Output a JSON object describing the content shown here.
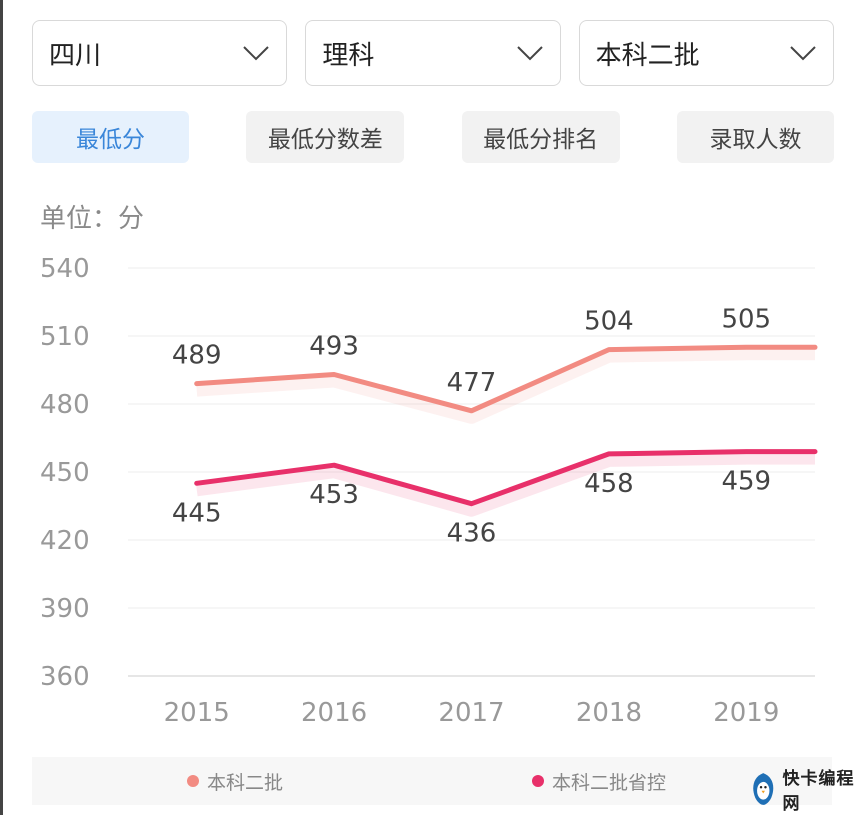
{
  "filters": {
    "province": "四川",
    "subject": "理科",
    "batch": "本科二批"
  },
  "tabs": [
    {
      "label": "最低分",
      "active": true
    },
    {
      "label": "最低分数差",
      "active": false
    },
    {
      "label": "最低分排名",
      "active": false
    },
    {
      "label": "录取人数",
      "active": false
    }
  ],
  "unit_label": "单位：分",
  "colors": {
    "series1": "#f28b82",
    "series2": "#e8306a",
    "active_tab_text": "#3a86d9",
    "active_tab_bg": "#e6f1fd"
  },
  "chart_data": {
    "type": "line",
    "x": [
      "2015",
      "2016",
      "2017",
      "2018",
      "2019"
    ],
    "ylim": [
      360,
      540
    ],
    "yticks": [
      "540",
      "510",
      "480",
      "450",
      "420",
      "390",
      "360"
    ],
    "grid": true,
    "legend": "bottom",
    "series": [
      {
        "name": "本科二批",
        "values": [
          489,
          493,
          477,
          504,
          505
        ]
      },
      {
        "name": "本科二批省控",
        "values": [
          445,
          453,
          436,
          458,
          459
        ]
      }
    ]
  },
  "watermark": {
    "icon": "bird-logo-icon",
    "text": "快卡编程网"
  }
}
